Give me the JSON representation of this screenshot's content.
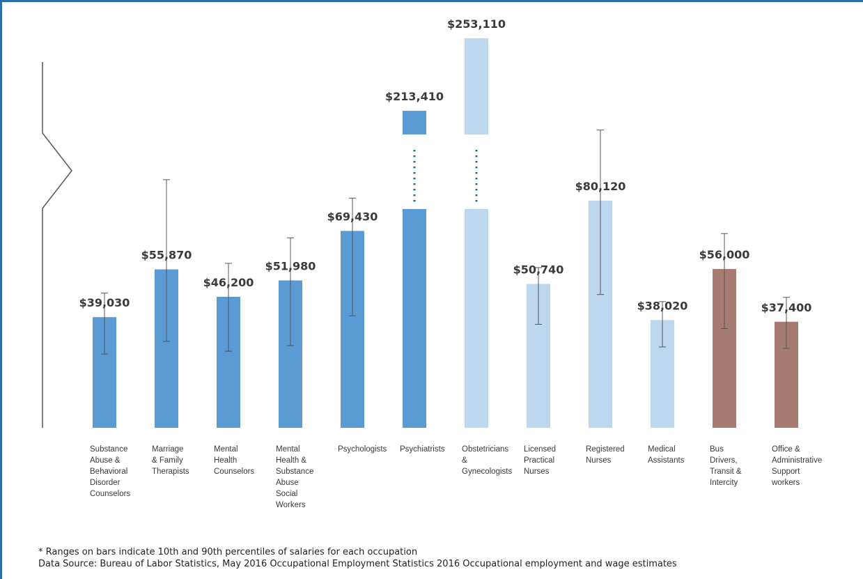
{
  "chart_data": {
    "type": "bar",
    "title": "",
    "xlabel": "",
    "ylabel": "",
    "axis_break": true,
    "categories": [
      [
        "Substance",
        "Abuse &",
        "Behavioral",
        "Disorder",
        "Counselors"
      ],
      [
        "Marriage",
        "& Family",
        "Therapists"
      ],
      [
        "Mental",
        "Health",
        "Counselors"
      ],
      [
        "Mental",
        "Health &",
        "Substance",
        "Abuse",
        "Social",
        "Workers"
      ],
      [
        "Psychologists"
      ],
      [
        "Psychiatrists"
      ],
      [
        "Obstetricians",
        "&",
        "Gynecologists"
      ],
      [
        "Licensed",
        "Practical",
        "Nurses"
      ],
      [
        "Registered",
        "Nurses"
      ],
      [
        "Medical",
        "Assistants"
      ],
      [
        "Bus",
        "Drivers,",
        "Transit &",
        "Intercity"
      ],
      [
        "Office &",
        "Administrative",
        "Support",
        "workers"
      ]
    ],
    "values": [
      39030,
      55870,
      46200,
      51980,
      69430,
      213410,
      253110,
      50740,
      80120,
      38020,
      56000,
      37400
    ],
    "value_labels": [
      "$39,030",
      "$55,870",
      "$46,200",
      "$51,980",
      "$69,430",
      "$213,410",
      "$253,110",
      "$50,740",
      "$80,120",
      "$38,020",
      "$56,000",
      "$37,400"
    ],
    "percentile_10": [
      26000,
      30500,
      27000,
      29000,
      39500,
      null,
      null,
      36500,
      47000,
      28500,
      35000,
      28000
    ],
    "percentile_90": [
      47500,
      87500,
      58000,
      67000,
      81000,
      null,
      null,
      56500,
      105000,
      44500,
      68500,
      46000
    ],
    "colors": [
      "#5b9bd5",
      "#5b9bd5",
      "#5b9bd5",
      "#5b9bd5",
      "#5b9bd5",
      "#5b9bd5",
      "#bdd7ee",
      "#bdd7ee",
      "#bdd7ee",
      "#bdd7ee",
      "#a67c72",
      "#a67c72"
    ],
    "ylim": [
      0,
      120000
    ]
  },
  "notes": {
    "line1": "* Ranges on bars indicate 10th and 90th percentiles of salaries for each occupation",
    "line2": "Data Source: Bureau of Labor Statistics, May 2016 Occupational Employment Statistics 2016 Occupational employment and wage estimates"
  }
}
